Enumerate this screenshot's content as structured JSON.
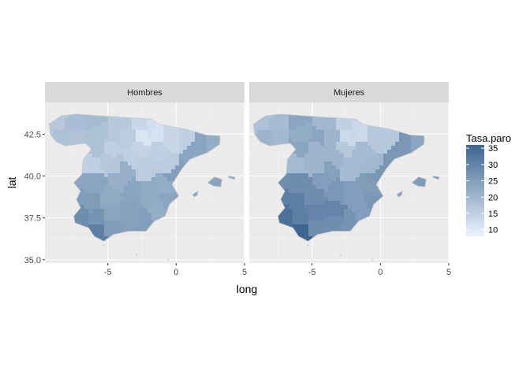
{
  "chart_data": {
    "type": "choropleth",
    "title": "",
    "xlabel": "long",
    "ylabel": "lat",
    "xlim": [
      -9.6,
      5.0
    ],
    "ylim": [
      34.8,
      44.4
    ],
    "x_ticks": [
      -5,
      0,
      5
    ],
    "x_tick_labels": [
      "-5",
      "0",
      "5"
    ],
    "y_ticks": [
      35.0,
      37.5,
      40.0,
      42.5
    ],
    "y_tick_labels": [
      "35.0",
      "37.5",
      "40.0",
      "42.5"
    ],
    "grid": true,
    "facets": [
      {
        "label": "Hombres",
        "level": 0.45
      },
      {
        "label": "Mujeres",
        "level": 0.72
      }
    ],
    "legend": {
      "title": "Tasa.paro",
      "position": "right",
      "range": [
        8,
        36
      ],
      "breaks": [
        10,
        15,
        20,
        25,
        30,
        35
      ],
      "break_labels": [
        "10",
        "15",
        "20",
        "25",
        "30",
        "35"
      ],
      "low_color": "#eaf3fd",
      "high_color": "#3e6690"
    }
  }
}
